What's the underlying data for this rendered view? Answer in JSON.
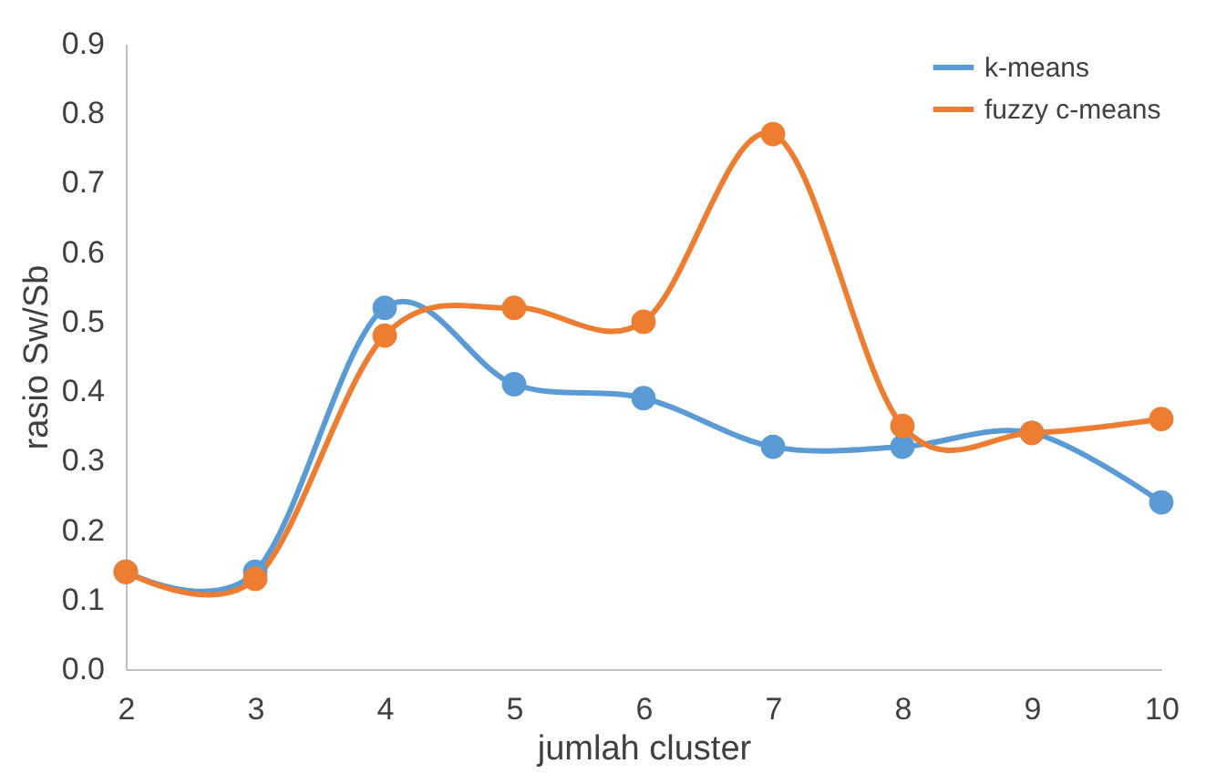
{
  "chart_data": {
    "type": "line",
    "xlabel": "jumlah cluster",
    "ylabel": "rasio Sw/Sb",
    "categories": [
      "2",
      "3",
      "4",
      "5",
      "6",
      "7",
      "8",
      "9",
      "10"
    ],
    "series": [
      {
        "name": "k-means",
        "color": "#5b9bd5",
        "values": [
          0.14,
          0.14,
          0.52,
          0.41,
          0.39,
          0.32,
          0.32,
          0.34,
          0.24
        ]
      },
      {
        "name": "fuzzy c-means",
        "color": "#ed7d31",
        "values": [
          0.14,
          0.13,
          0.48,
          0.52,
          0.5,
          0.77,
          0.35,
          0.34,
          0.36
        ]
      }
    ],
    "ylim": [
      0,
      0.9
    ],
    "yticks": [
      {
        "value": 0,
        "label": "0.0"
      },
      {
        "value": 0.1,
        "label": "0.1"
      },
      {
        "value": 0.2,
        "label": "0.2"
      },
      {
        "value": 0.3,
        "label": "0.3"
      },
      {
        "value": 0.4,
        "label": "0.4"
      },
      {
        "value": 0.5,
        "label": "0.5"
      },
      {
        "value": 0.6,
        "label": "0.6"
      },
      {
        "value": 0.7,
        "label": "0.7"
      },
      {
        "value": 0.8,
        "label": "0.8"
      },
      {
        "value": 0.9,
        "label": "0.9"
      }
    ],
    "grid": false,
    "legend": "top right",
    "marker": "circle",
    "line_style": "solid"
  }
}
